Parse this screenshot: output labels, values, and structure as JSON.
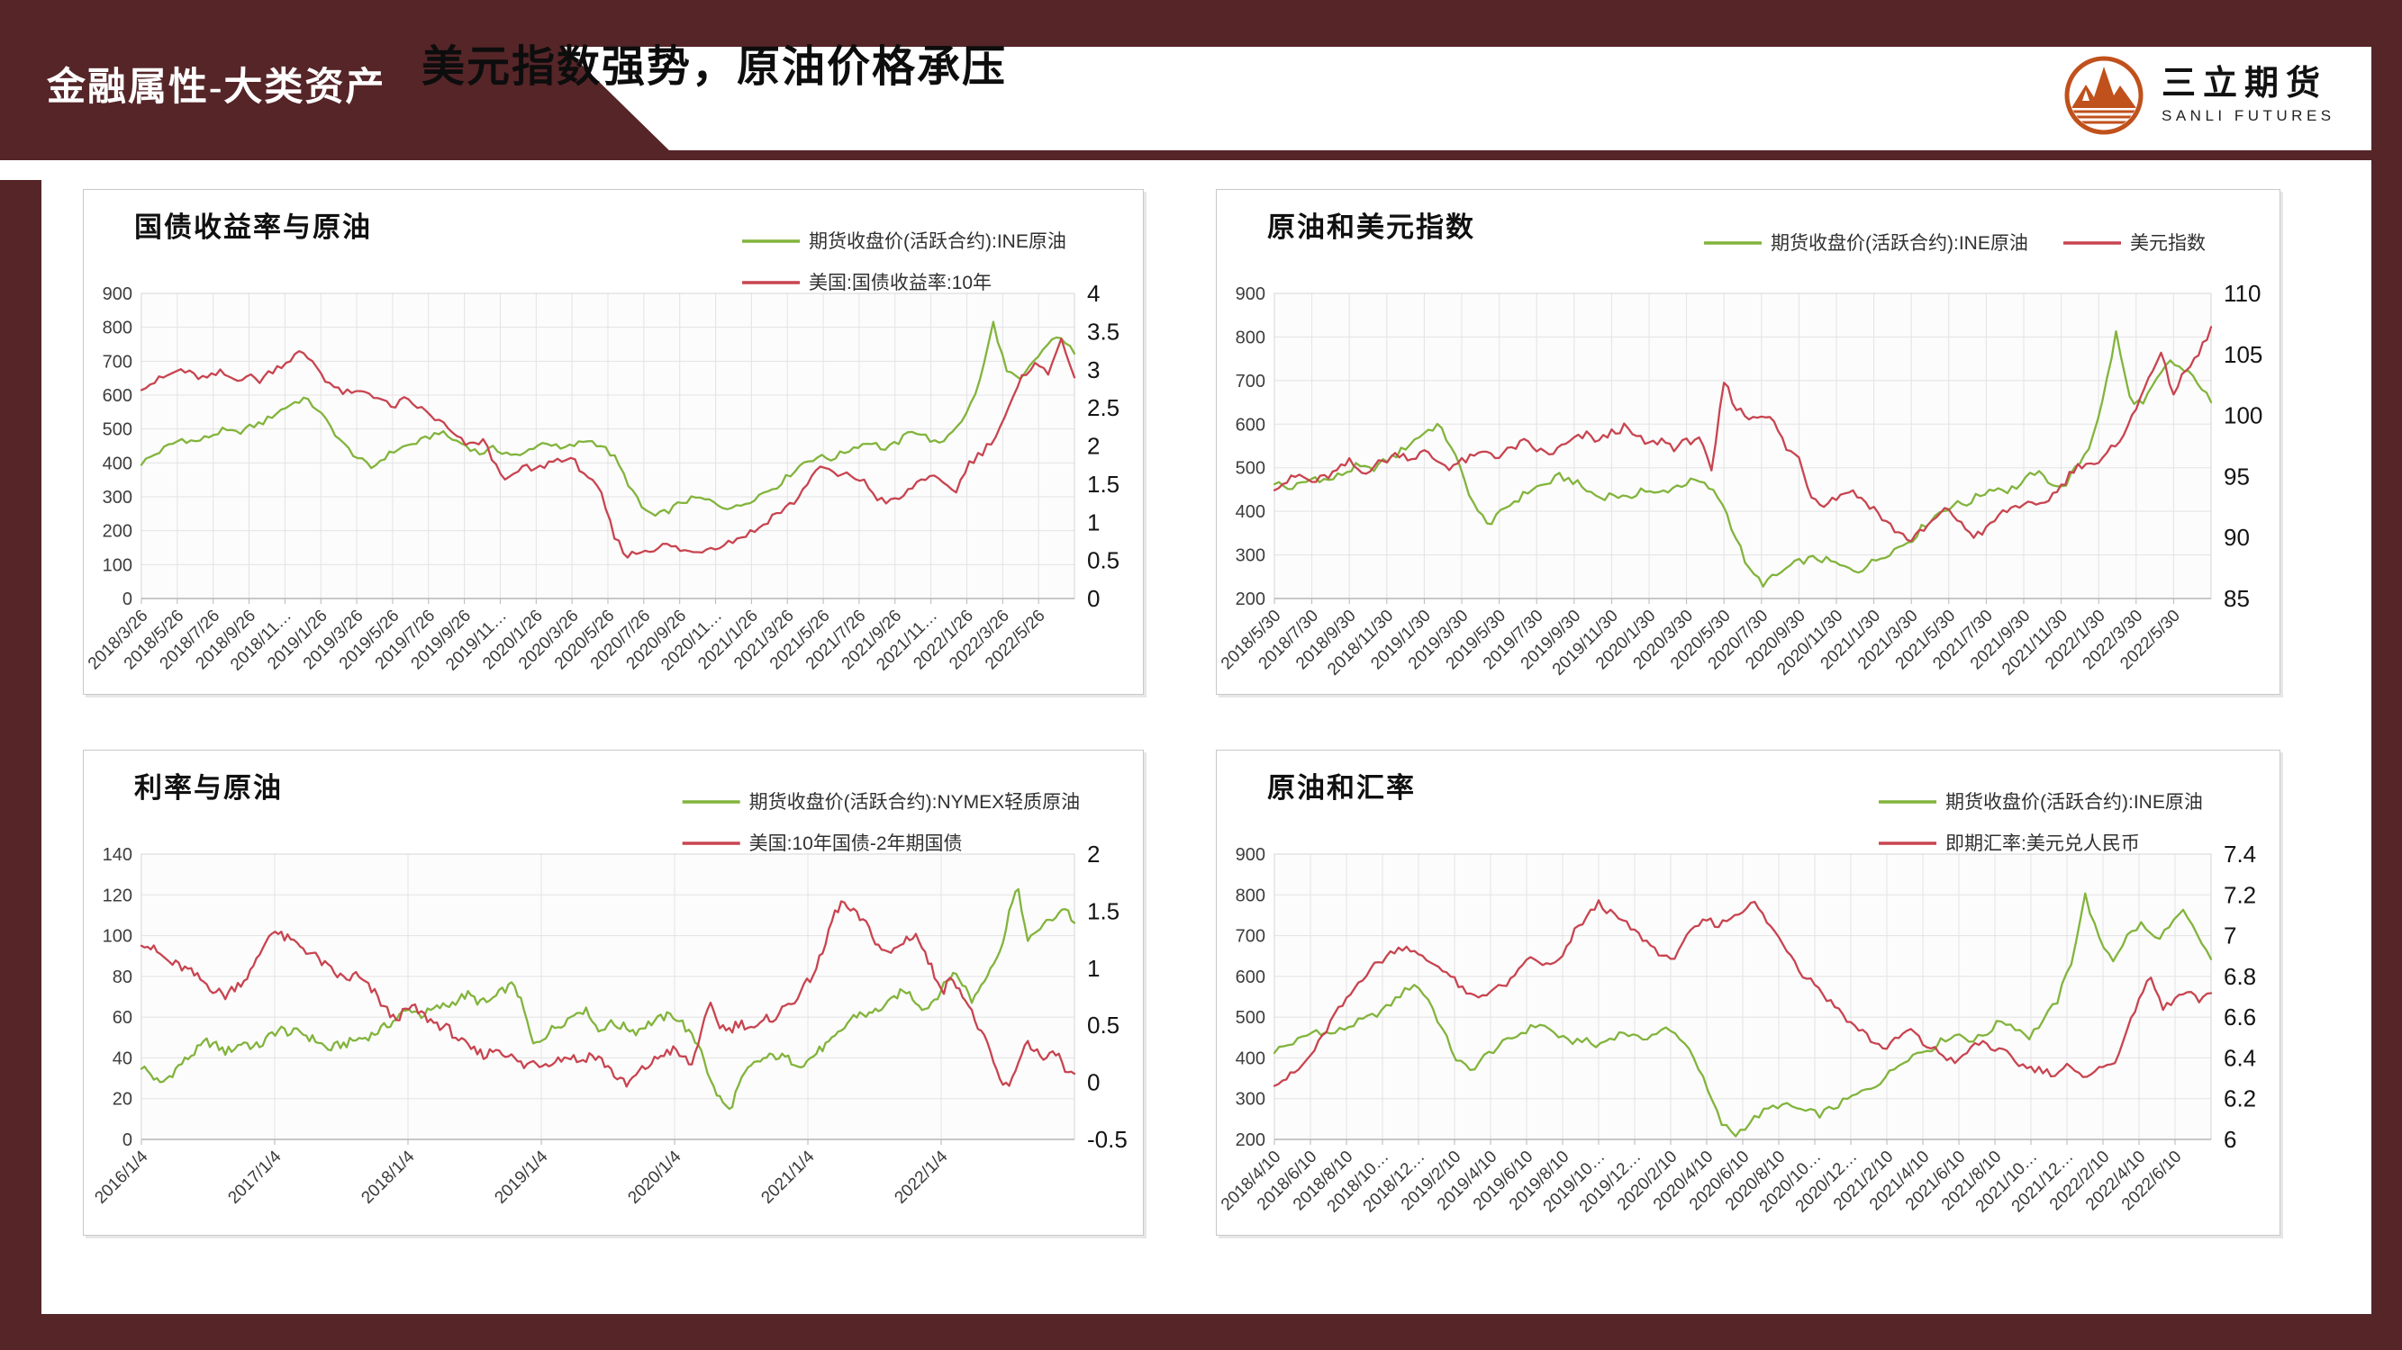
{
  "slide": {
    "banner_label": "金融属性-大类资产",
    "title": "美元指数强势，原油价格承压",
    "logo": {
      "name_cn": "三立期货",
      "name_en": "SANLI FUTURES"
    },
    "colors": {
      "maroon": "#552528",
      "green": "#82b43c",
      "red": "#c84450",
      "logo_orange": "#c0511c",
      "grid": "#e3e3e3",
      "axis": "#b5b5b5",
      "tick_text": "#3d3d3d",
      "right_tick_text": "#141414"
    }
  },
  "chart_data": [
    {
      "type": "line",
      "title": "国债收益率与原油",
      "legend_layout": "stacked",
      "x_labels": [
        "2018/3/26",
        "2018/5/26",
        "2018/7/26",
        "2018/9/26",
        "2018/11…",
        "2019/1/26",
        "2019/3/26",
        "2019/5/26",
        "2019/7/26",
        "2019/9/26",
        "2019/11…",
        "2020/1/26",
        "2020/3/26",
        "2020/5/26",
        "2020/7/26",
        "2020/9/26",
        "2020/11…",
        "2021/1/26",
        "2021/3/26",
        "2021/5/26",
        "2021/7/26",
        "2021/9/26",
        "2021/11…",
        "2022/1/26",
        "2022/3/26",
        "2022/5/26"
      ],
      "left_axis": {
        "min": 0,
        "max": 900,
        "step": 100
      },
      "right_axis": {
        "min": 0,
        "max": 4,
        "step": 0.5
      },
      "series": [
        {
          "name": "期货收盘价(活跃合约):INE原油",
          "axis": "left",
          "color": "green",
          "noise": 9,
          "values": [
            400,
            425,
            450,
            470,
            462,
            478,
            495,
            488,
            505,
            520,
            548,
            572,
            590,
            560,
            505,
            452,
            415,
            385,
            418,
            442,
            455,
            470,
            492,
            470,
            452,
            428,
            442,
            430,
            418,
            448,
            462,
            440,
            452,
            468,
            452,
            415,
            340,
            268,
            242,
            260,
            285,
            296,
            288,
            272,
            268,
            290,
            312,
            332,
            368,
            402,
            418,
            412,
            432,
            452,
            462,
            438,
            462,
            498,
            478,
            452,
            498,
            542,
            640,
            812,
            668,
            642,
            700,
            748,
            775,
            720
          ]
        },
        {
          "name": "美国:国债收益率:10年",
          "axis": "right",
          "color": "red",
          "noise": 0.05,
          "values": [
            2.78,
            2.84,
            2.92,
            3.0,
            2.92,
            2.88,
            2.96,
            2.88,
            2.92,
            2.86,
            3.0,
            3.1,
            3.22,
            3.12,
            2.88,
            2.72,
            2.68,
            2.72,
            2.64,
            2.5,
            2.6,
            2.52,
            2.4,
            2.28,
            2.1,
            2.0,
            2.08,
            1.72,
            1.55,
            1.72,
            1.68,
            1.78,
            1.84,
            1.78,
            1.6,
            1.35,
            0.8,
            0.56,
            0.62,
            0.66,
            0.7,
            0.64,
            0.6,
            0.66,
            0.7,
            0.76,
            0.84,
            0.92,
            1.08,
            1.18,
            1.32,
            1.62,
            1.72,
            1.6,
            1.62,
            1.52,
            1.32,
            1.26,
            1.34,
            1.52,
            1.62,
            1.48,
            1.42,
            1.78,
            1.92,
            2.14,
            2.48,
            2.88,
            3.12,
            2.92,
            3.45,
            2.85
          ]
        }
      ]
    },
    {
      "type": "line",
      "title": "原油和美元指数",
      "legend_layout": "inline",
      "x_labels": [
        "2018/5/30",
        "2018/7/30",
        "2018/9/30",
        "2018/11/30",
        "2019/1/30",
        "2019/3/30",
        "2019/5/30",
        "2019/7/30",
        "2019/9/30",
        "2019/11/30",
        "2020/1/30",
        "2020/3/30",
        "2020/5/30",
        "2020/7/30",
        "2020/9/30",
        "2020/11/30",
        "2021/1/30",
        "2021/3/30",
        "2021/5/30",
        "2021/7/30",
        "2021/9/30",
        "2021/11/30",
        "2022/1/30",
        "2022/3/30",
        "2022/5/30"
      ],
      "left_axis": {
        "min": 200,
        "max": 900,
        "step": 100
      },
      "right_axis": {
        "min": 85,
        "max": 110,
        "step": 5
      },
      "series": [
        {
          "name": "期货收盘价(活跃合约):INE原油",
          "axis": "left",
          "color": "green",
          "noise": 9,
          "values": [
            468,
            452,
            462,
            478,
            470,
            486,
            502,
            495,
            512,
            530,
            556,
            580,
            598,
            552,
            470,
            395,
            372,
            408,
            430,
            452,
            462,
            480,
            470,
            448,
            432,
            440,
            426,
            452,
            438,
            450,
            462,
            470,
            455,
            420,
            340,
            262,
            235,
            252,
            274,
            288,
            292,
            284,
            270,
            265,
            282,
            302,
            318,
            338,
            372,
            398,
            415,
            418,
            438,
            455,
            448,
            462,
            490,
            472,
            452,
            495,
            548,
            650,
            808,
            660,
            645,
            700,
            745,
            722,
            700,
            648
          ]
        },
        {
          "name": "美元指数",
          "axis": "right",
          "color": "red",
          "noise": 0.35,
          "values": [
            94.2,
            94.6,
            95.1,
            94.5,
            94.9,
            95.4,
            96.2,
            95.3,
            95.9,
            96.4,
            96.9,
            96.5,
            97.0,
            96.3,
            95.8,
            96.2,
            96.6,
            97.1,
            96.6,
            97.3,
            97.8,
            97.2,
            96.8,
            97.4,
            98.0,
            98.4,
            97.9,
            98.6,
            99.0,
            98.2,
            97.6,
            98.0,
            97.4,
            97.8,
            98.3,
            95.2,
            102.8,
            100.6,
            99.8,
            100.2,
            99.4,
            97.3,
            96.5,
            93.4,
            92.8,
            93.3,
            93.9,
            93.2,
            92.4,
            91.2,
            90.4,
            89.8,
            90.6,
            91.6,
            92.4,
            91.0,
            90.2,
            90.6,
            91.8,
            92.4,
            92.8,
            92.4,
            93.2,
            94.2,
            95.6,
            96.2,
            95.9,
            97.2,
            98.6,
            100.4,
            103.4,
            104.8,
            101.9,
            103.6,
            105.0,
            107.2
          ]
        }
      ]
    },
    {
      "type": "line",
      "title": "利率与原油",
      "legend_layout": "stacked",
      "x_labels": [
        "2016/1/4",
        "2017/1/4",
        "2018/1/4",
        "2019/1/4",
        "2020/1/4",
        "2021/1/4",
        "2022/1/4"
      ],
      "left_axis": {
        "min": 0,
        "max": 140,
        "step": 20
      },
      "right_axis": {
        "min": -0.5,
        "max": 2,
        "step": 0.5
      },
      "series": [
        {
          "name": "期货收盘价(活跃合约):NYMEX轻质原油",
          "axis": "left",
          "color": "green",
          "noise": 2.2,
          "values": [
            36,
            32,
            27,
            31,
            36,
            40,
            44,
            48,
            46,
            43,
            45,
            48,
            45,
            47,
            52,
            54,
            52,
            53,
            50,
            48,
            44,
            46,
            47,
            49,
            50,
            52,
            55,
            58,
            62,
            64,
            61,
            63,
            65,
            66,
            69,
            71,
            68,
            67,
            70,
            74,
            76,
            63,
            46,
            50,
            54,
            57,
            60,
            64,
            62,
            53,
            57,
            56,
            55,
            53,
            56,
            58,
            60,
            61,
            57,
            50,
            45,
            28,
            20,
            14,
            26,
            34,
            38,
            40,
            41,
            40,
            38,
            37,
            41,
            45,
            48,
            53,
            59,
            62,
            61,
            64,
            66,
            71,
            73,
            68,
            64,
            69,
            75,
            82,
            77,
            68,
            76,
            85,
            91,
            112,
            123,
            96,
            103,
            106,
            110,
            114,
            106
          ]
        },
        {
          "name": "美国:10年国债-2年期国债",
          "axis": "right",
          "color": "red",
          "noise": 0.045,
          "values": [
            1.24,
            1.18,
            1.12,
            1.05,
            1.02,
            0.98,
            0.92,
            0.86,
            0.8,
            0.76,
            0.84,
            0.9,
            1.0,
            1.18,
            1.34,
            1.28,
            1.24,
            1.2,
            1.14,
            1.08,
            1.0,
            0.94,
            0.9,
            0.94,
            0.86,
            0.78,
            0.66,
            0.56,
            0.6,
            0.66,
            0.6,
            0.54,
            0.5,
            0.46,
            0.38,
            0.3,
            0.26,
            0.24,
            0.3,
            0.26,
            0.2,
            0.14,
            0.18,
            0.16,
            0.19,
            0.21,
            0.23,
            0.18,
            0.24,
            0.21,
            0.14,
            0.04,
            -0.03,
            0.06,
            0.13,
            0.19,
            0.26,
            0.28,
            0.22,
            0.15,
            0.46,
            0.66,
            0.5,
            0.46,
            0.52,
            0.5,
            0.47,
            0.55,
            0.58,
            0.66,
            0.73,
            0.82,
            0.96,
            1.12,
            1.42,
            1.58,
            1.5,
            1.44,
            1.34,
            1.2,
            1.12,
            1.18,
            1.26,
            1.3,
            1.12,
            0.94,
            0.82,
            0.92,
            0.78,
            0.6,
            0.44,
            0.24,
            0.02,
            -0.06,
            0.2,
            0.36,
            0.26,
            0.18,
            0.28,
            0.1,
            0.05
          ]
        }
      ]
    },
    {
      "type": "line",
      "title": "原油和汇率",
      "legend_layout": "stacked",
      "x_labels": [
        "2018/4/10",
        "2018/6/10",
        "2018/8/10",
        "2018/10…",
        "2018/12…",
        "2019/2/10",
        "2019/4/10",
        "2019/6/10",
        "2019/8/10",
        "2019/10…",
        "2019/12…",
        "2020/2/10",
        "2020/4/10",
        "2020/6/10",
        "2020/8/10",
        "2020/10…",
        "2020/12…",
        "2021/2/10",
        "2021/4/10",
        "2021/6/10",
        "2021/8/10",
        "2021/10…",
        "2021/12…",
        "2022/2/10",
        "2022/4/10",
        "2022/6/10"
      ],
      "left_axis": {
        "min": 200,
        "max": 900,
        "step": 100
      },
      "right_axis": {
        "min": 6,
        "max": 7.4,
        "step": 0.2
      },
      "series": [
        {
          "name": "期货收盘价(活跃合约):INE原油",
          "axis": "left",
          "color": "green",
          "noise": 9,
          "values": [
            418,
            432,
            448,
            468,
            458,
            472,
            488,
            502,
            522,
            555,
            582,
            545,
            470,
            398,
            368,
            402,
            428,
            448,
            468,
            484,
            462,
            438,
            446,
            428,
            448,
            464,
            446,
            456,
            470,
            452,
            405,
            318,
            238,
            212,
            242,
            268,
            284,
            280,
            268,
            262,
            278,
            298,
            315,
            334,
            362,
            396,
            412,
            424,
            448,
            458,
            442,
            462,
            492,
            476,
            452,
            492,
            540,
            636,
            798,
            688,
            642,
            698,
            728,
            692,
            718,
            758,
            702,
            642
          ]
        },
        {
          "name": "即期汇率:美元兑人民币",
          "axis": "right",
          "color": "red",
          "noise": 0.018,
          "values": [
            6.28,
            6.3,
            6.34,
            6.41,
            6.5,
            6.61,
            6.68,
            6.77,
            6.84,
            6.88,
            6.93,
            6.95,
            6.9,
            6.87,
            6.84,
            6.78,
            6.71,
            6.7,
            6.73,
            6.75,
            6.79,
            6.89,
            6.87,
            6.85,
            6.89,
            7.02,
            7.09,
            7.16,
            7.11,
            7.07,
            7.02,
            6.97,
            6.92,
            6.87,
            6.97,
            7.03,
            7.08,
            7.05,
            7.09,
            7.13,
            7.16,
            7.07,
            6.99,
            6.91,
            6.81,
            6.77,
            6.69,
            6.64,
            6.57,
            6.53,
            6.47,
            6.45,
            6.5,
            6.54,
            6.47,
            6.44,
            6.4,
            6.38,
            6.45,
            6.48,
            6.44,
            6.42,
            6.37,
            6.35,
            6.34,
            6.32,
            6.36,
            6.31,
            6.33,
            6.35,
            6.39,
            6.52,
            6.7,
            6.79,
            6.64,
            6.69,
            6.72,
            6.68,
            6.71
          ]
        }
      ]
    }
  ]
}
